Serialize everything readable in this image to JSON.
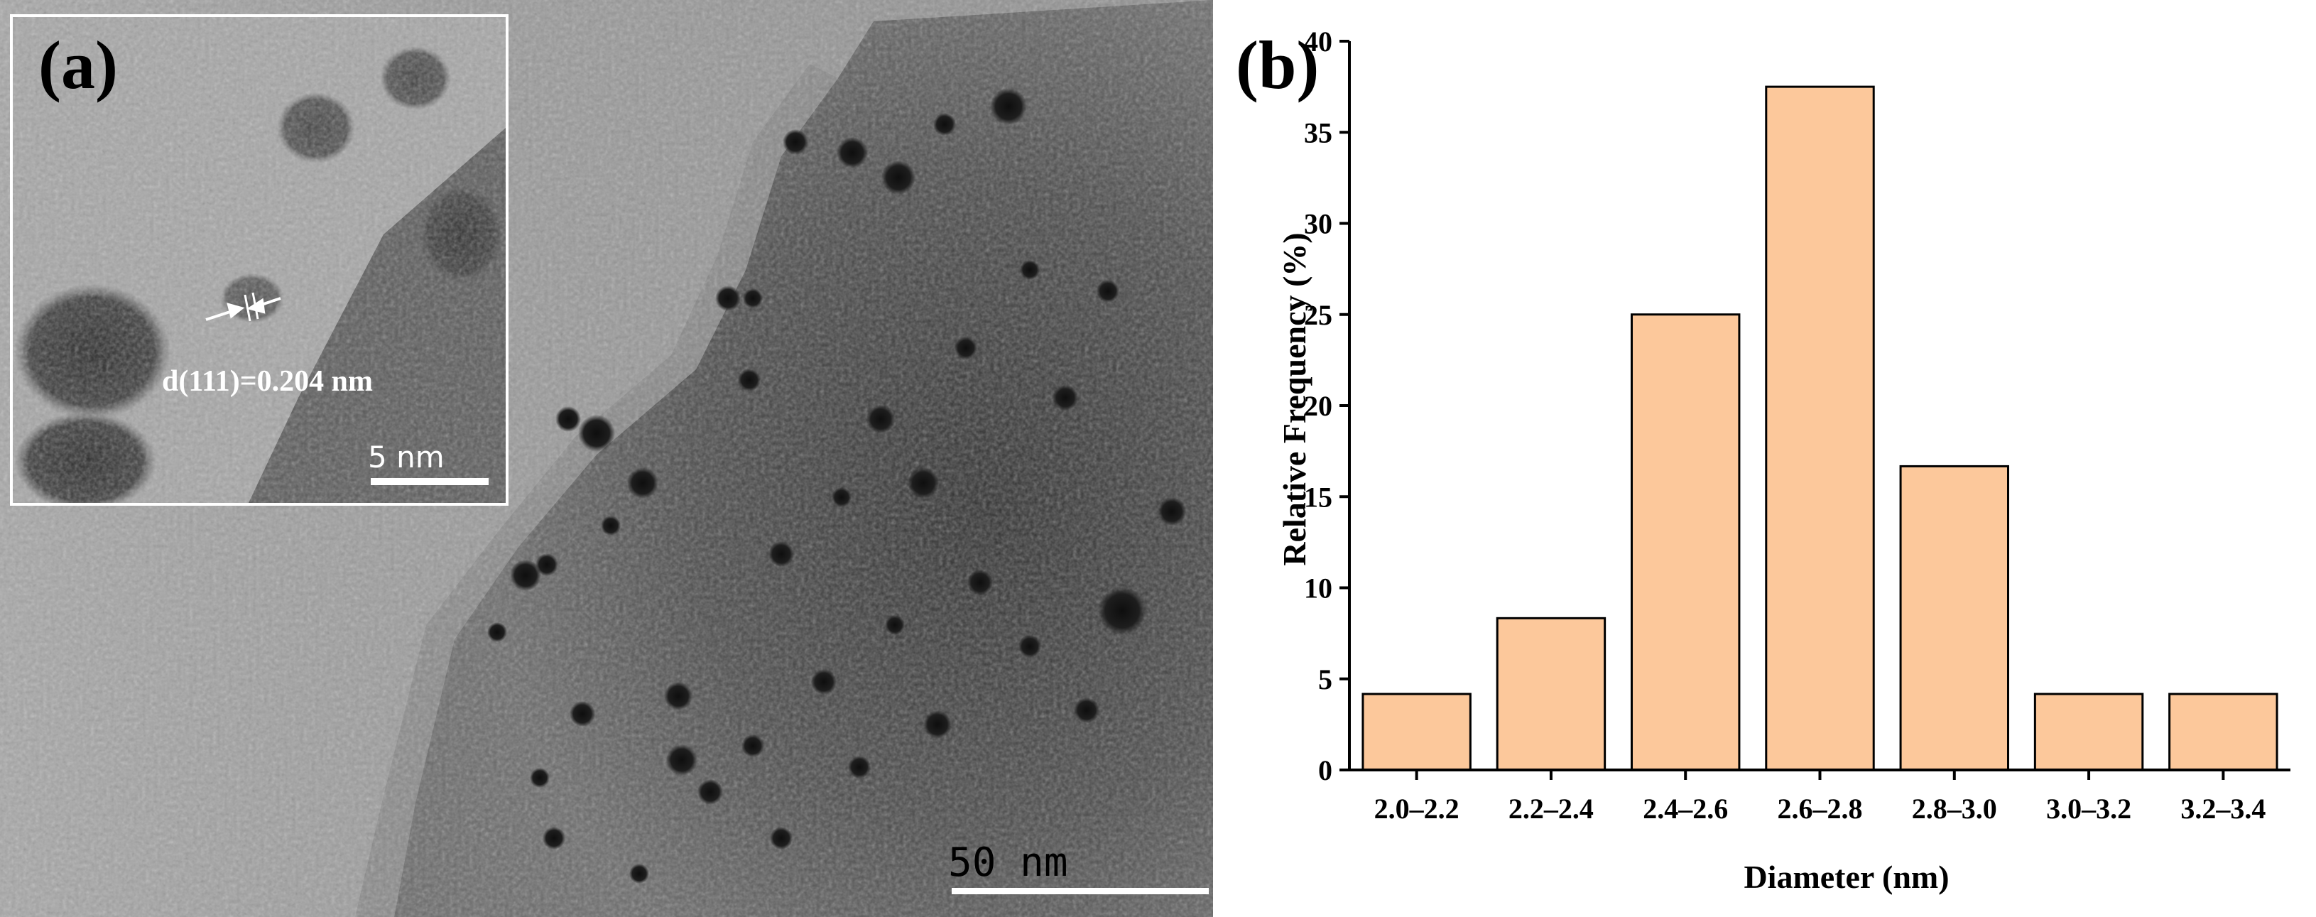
{
  "panel_a": {
    "label": "(a)",
    "scale_bar_main": "50 nm",
    "inset": {
      "annotation": "d(111)=0.204 nm",
      "scale_bar": "5 nm"
    }
  },
  "panel_b": {
    "label": "(b)"
  },
  "chart_data": {
    "type": "bar",
    "categories": [
      "2.0–2.2",
      "2.2–2.4",
      "2.4–2.6",
      "2.6–2.8",
      "2.8–3.0",
      "3.0–3.2",
      "3.2–3.4"
    ],
    "values": [
      4.17,
      8.33,
      25.0,
      37.5,
      16.67,
      4.17,
      4.17
    ],
    "xlabel": "Diameter (nm)",
    "ylabel": "Relative Frequency (%)",
    "ylim": [
      0,
      40
    ],
    "yticks": [
      0,
      5,
      10,
      15,
      20,
      25,
      30,
      35,
      40
    ],
    "bar_color": "#FCC89B",
    "edge_color": "#000000",
    "grid": false,
    "legend": "none"
  }
}
